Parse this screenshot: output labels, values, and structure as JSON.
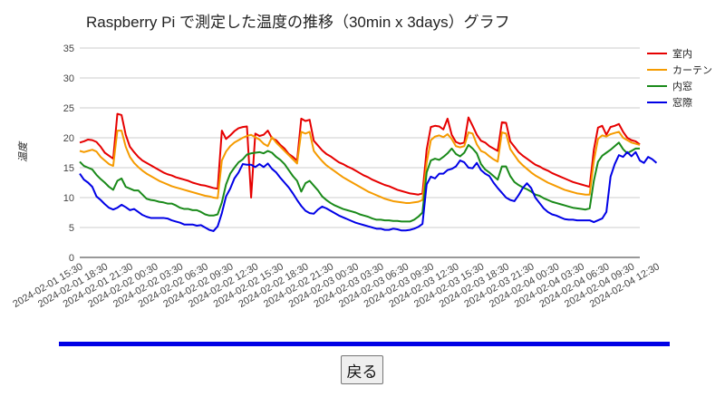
{
  "page": {
    "back_button_label": "戻る",
    "divider_color": "#0000e6"
  },
  "chart_data": {
    "type": "line",
    "title": "Raspberry Pi で測定した温度の推移（30min x 3days）グラフ",
    "xlabel": "",
    "ylabel": "温度",
    "ylim": [
      0,
      35
    ],
    "yticks": [
      0,
      5,
      10,
      15,
      20,
      25,
      30,
      35
    ],
    "grid": true,
    "legend_position": "right",
    "x_tick_labels": [
      "2024-02-01 15:30",
      "2024-02-01 18:30",
      "2024-02-01 21:30",
      "2024-02-02 00:30",
      "2024-02-02 03:30",
      "2024-02-02 06:30",
      "2024-02-02 09:30",
      "2024-02-02 12:30",
      "2024-02-02 15:30",
      "2024-02-02 18:30",
      "2024-02-02 21:30",
      "2024-02-03 00:30",
      "2024-02-03 03:30",
      "2024-02-03 06:30",
      "2024-02-03 09:30",
      "2024-02-03 12:30",
      "2024-02-03 15:30",
      "2024-02-03 18:30",
      "2024-02-03 21:30",
      "2024-02-04 00:30",
      "2024-02-04 03:30",
      "2024-02-04 06:30",
      "2024-02-04 09:30",
      "2024-02-04 12:30"
    ],
    "x_start": "2024-02-01 15:30",
    "x_step_minutes": 30,
    "series": [
      {
        "name": "室内",
        "color": "#e60000",
        "values": [
          19.2,
          19.4,
          19.7,
          19.6,
          19.3,
          18.5,
          17.5,
          17,
          16.5,
          24,
          23.8,
          20.5,
          18.5,
          17.6,
          16.8,
          16.2,
          15.8,
          15.4,
          15,
          14.6,
          14.2,
          13.9,
          13.7,
          13.4,
          13.2,
          13,
          12.8,
          12.5,
          12.3,
          12.1,
          12,
          11.8,
          11.6,
          11.5,
          21.2,
          19.8,
          20.4,
          21.1,
          21.6,
          21.8,
          21.9,
          10,
          20.7,
          20.3,
          20.5,
          21.2,
          19.9,
          19.6,
          18.8,
          18.2,
          17.3,
          16.8,
          16.2,
          23.2,
          22.8,
          23,
          19.5,
          18.7,
          17.9,
          17.3,
          16.9,
          16.4,
          15.9,
          15.6,
          15.2,
          14.9,
          14.5,
          14.1,
          13.7,
          13.4,
          13,
          12.7,
          12.4,
          12.1,
          11.9,
          11.6,
          11.3,
          11.1,
          10.9,
          10.7,
          10.6,
          10.5,
          10.7,
          18,
          21.8,
          22,
          21.9,
          21.4,
          23.2,
          20.5,
          19.3,
          19,
          19.2,
          23.4,
          22,
          20.5,
          19.5,
          19.2,
          18.6,
          18.2,
          17.8,
          22.6,
          22.5,
          19.4,
          18.5,
          17.6,
          17,
          16.5,
          16,
          15.5,
          15.2,
          14.8,
          14.5,
          14.1,
          13.8,
          13.5,
          13.2,
          12.9,
          12.6,
          12.4,
          12.2,
          12,
          11.8,
          18,
          21.7,
          22,
          20.5,
          21.8,
          22,
          22.3,
          21,
          20,
          19.6,
          19.4,
          18.9
        ]
      },
      {
        "name": "カーテン",
        "color": "#f59b00",
        "values": [
          17.8,
          17.6,
          17.8,
          18,
          17.7,
          16.8,
          16.2,
          15.6,
          15.3,
          21.2,
          21.2,
          18.5,
          16.8,
          15.8,
          15.1,
          14.5,
          14,
          13.6,
          13.2,
          12.8,
          12.5,
          12.2,
          11.9,
          11.7,
          11.5,
          11.3,
          11.1,
          10.9,
          10.7,
          10.5,
          10.3,
          10.2,
          10,
          9.9,
          16.2,
          17.7,
          18.6,
          19.2,
          19.6,
          20,
          20.3,
          20.5,
          20.1,
          19.7,
          19,
          18.6,
          20.1,
          19.2,
          18.5,
          17.8,
          17.1,
          16.4,
          15.7,
          21,
          20.7,
          21,
          17.8,
          16.9,
          16.1,
          15.4,
          14.9,
          14.4,
          13.9,
          13.4,
          13,
          12.6,
          12.2,
          11.8,
          11.4,
          11,
          10.7,
          10.4,
          10.1,
          9.8,
          9.6,
          9.4,
          9.3,
          9.2,
          9.1,
          9.1,
          9.2,
          9.3,
          9.6,
          15.8,
          19.6,
          20.2,
          20.4,
          20.1,
          20.6,
          19.8,
          18.6,
          18.4,
          18.6,
          20.9,
          20.7,
          18.9,
          17.8,
          17.5,
          16.9,
          16.4,
          16,
          20.9,
          20.7,
          18.1,
          17.1,
          16.1,
          15.4,
          14.8,
          14.2,
          13.7,
          13.3,
          12.9,
          12.5,
          12.2,
          11.9,
          11.6,
          11.3,
          11.1,
          10.9,
          10.7,
          10.6,
          10.5,
          10.5,
          16.1,
          19.8,
          20.4,
          20.2,
          20.6,
          20.8,
          21,
          20,
          19.6,
          19.2,
          19,
          18.8
        ]
      },
      {
        "name": "内窓",
        "color": "#1a8a1a",
        "values": [
          16,
          15.3,
          15,
          14.7,
          13.8,
          13.1,
          12.5,
          11.8,
          11.3,
          12.8,
          13.2,
          11.8,
          11.5,
          11.2,
          11.2,
          10.5,
          9.8,
          9.6,
          9.5,
          9.3,
          9.2,
          9,
          9,
          8.7,
          8.3,
          8.1,
          8.1,
          7.9,
          7.9,
          7.6,
          7.2,
          7,
          7,
          7.2,
          9.2,
          12.2,
          14,
          15,
          15.9,
          16.4,
          17.2,
          17.4,
          17.5,
          17.6,
          17.4,
          17.8,
          17.5,
          16.8,
          16.3,
          15.6,
          14.6,
          13.6,
          12.8,
          11,
          12.4,
          12.8,
          12,
          11.2,
          10.2,
          9.6,
          9.1,
          8.7,
          8.4,
          8.1,
          7.9,
          7.7,
          7.5,
          7.2,
          7,
          6.8,
          6.5,
          6.3,
          6.3,
          6.2,
          6.2,
          6.1,
          6.1,
          6,
          6,
          6,
          6.3,
          6.8,
          7.5,
          14.2,
          16.2,
          16.5,
          16.3,
          16.8,
          17.4,
          18.2,
          17.3,
          16.9,
          17.5,
          18.8,
          18.2,
          17.4,
          15.6,
          14.7,
          14.2,
          13.6,
          13,
          15.2,
          15.2,
          13.6,
          12.6,
          12.1,
          11.7,
          11.4,
          11,
          10.5,
          10.3,
          9.9,
          9.6,
          9.3,
          9.1,
          8.9,
          8.7,
          8.5,
          8.3,
          8.2,
          8.1,
          8,
          8.2,
          12.8,
          16,
          17,
          17.5,
          18,
          18.6,
          19.2,
          18.1,
          17.4,
          17.8,
          18.2,
          18.2
        ]
      },
      {
        "name": "窓際",
        "color": "#0000e6",
        "values": [
          14,
          13,
          12.5,
          11.8,
          10.2,
          9.6,
          8.9,
          8.3,
          8,
          8.3,
          8.8,
          8.4,
          7.9,
          8.1,
          7.6,
          7.1,
          6.8,
          6.6,
          6.6,
          6.6,
          6.6,
          6.5,
          6.2,
          6,
          5.8,
          5.5,
          5.5,
          5.5,
          5.3,
          5.4,
          5,
          4.6,
          4.4,
          5.2,
          7.4,
          10.2,
          11.5,
          13.2,
          14.2,
          15.6,
          15.5,
          15.5,
          15.1,
          15.6,
          15.1,
          15.7,
          14.8,
          14.2,
          13.3,
          12.5,
          11.7,
          10.7,
          9.6,
          8.6,
          7.8,
          7.4,
          7.3,
          8,
          8.5,
          8.2,
          7.8,
          7.4,
          7,
          6.7,
          6.4,
          6.1,
          5.8,
          5.6,
          5.4,
          5.2,
          5,
          4.8,
          4.8,
          4.6,
          4.6,
          4.8,
          4.7,
          4.5,
          4.5,
          4.6,
          4.8,
          5.1,
          5.6,
          12.2,
          13.5,
          13.2,
          14,
          14,
          14.6,
          14.8,
          15.2,
          16.2,
          15.9,
          15,
          14.9,
          15.8,
          14.6,
          14,
          13.6,
          12.5,
          11.6,
          10.8,
          10,
          9.6,
          9.4,
          10.4,
          11.6,
          12.4,
          11.6,
          10,
          9.1,
          8.2,
          7.6,
          7.2,
          7,
          6.7,
          6.4,
          6.3,
          6.3,
          6.2,
          6.2,
          6.2,
          6.2,
          5.9,
          6.2,
          6.5,
          7.6,
          13.5,
          15.6,
          17.1,
          16.8,
          17.6,
          16.9,
          17.6,
          16.2,
          15.8,
          16.8,
          16.4,
          15.8
        ]
      }
    ]
  }
}
